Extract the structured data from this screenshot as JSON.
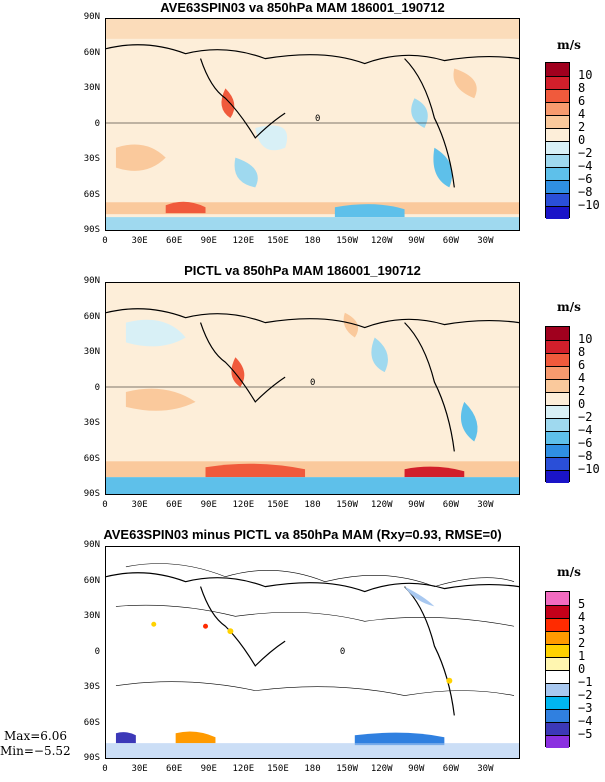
{
  "panels": [
    {
      "title": "AVE63SPIN03 va 850hPa MAM 186001_190712",
      "units": "m/s",
      "colorbar": {
        "colors": [
          "#a0001e",
          "#d21f2b",
          "#f05a3c",
          "#f79a6e",
          "#fac99c",
          "#fdeed9",
          "#d8f0f6",
          "#9fd9ef",
          "#5ec0ea",
          "#2f8fe3",
          "#2a4fd8",
          "#1a14c8"
        ],
        "labels": [
          "10",
          "8",
          "6",
          "4",
          "2",
          "0",
          "−2",
          "−4",
          "−6",
          "−8",
          "−10"
        ]
      }
    },
    {
      "title": "PICTL va 850hPa MAM 186001_190712",
      "units": "m/s",
      "colorbar": {
        "colors": [
          "#a0001e",
          "#d21f2b",
          "#f05a3c",
          "#f79a6e",
          "#fac99c",
          "#fdeed9",
          "#d8f0f6",
          "#9fd9ef",
          "#5ec0ea",
          "#2f8fe3",
          "#2a4fd8",
          "#1a14c8"
        ],
        "labels": [
          "10",
          "8",
          "6",
          "4",
          "2",
          "0",
          "−2",
          "−4",
          "−6",
          "−8",
          "−10"
        ]
      }
    },
    {
      "title": "AVE63SPIN03 minus PICTL va 850hPa MAM (Rxy=0.93, RMSE=0)",
      "units": "m/s",
      "colorbar": {
        "colors": [
          "#f26bc0",
          "#c4001a",
          "#ff2b00",
          "#ff9a00",
          "#ffd200",
          "#fff6b0",
          "#ffffff",
          "#a8c8f0",
          "#00b6f0",
          "#3080e0",
          "#3c38b8",
          "#8a30e0"
        ],
        "labels": [
          "5",
          "4",
          "3",
          "2",
          "1",
          "0",
          "−1",
          "−2",
          "−3",
          "−4",
          "−5"
        ]
      }
    }
  ],
  "lat_labels": [
    "90N",
    "60N",
    "30N",
    "0",
    "30S",
    "60S",
    "90S"
  ],
  "lon_labels": [
    "0",
    "30E",
    "60E",
    "90E",
    "120E",
    "150E",
    "180",
    "150W",
    "120W",
    "90W",
    "60W",
    "30W"
  ],
  "contour_label": "0",
  "stats": {
    "max": "Max=6.06",
    "min": "Min=−5.52"
  }
}
